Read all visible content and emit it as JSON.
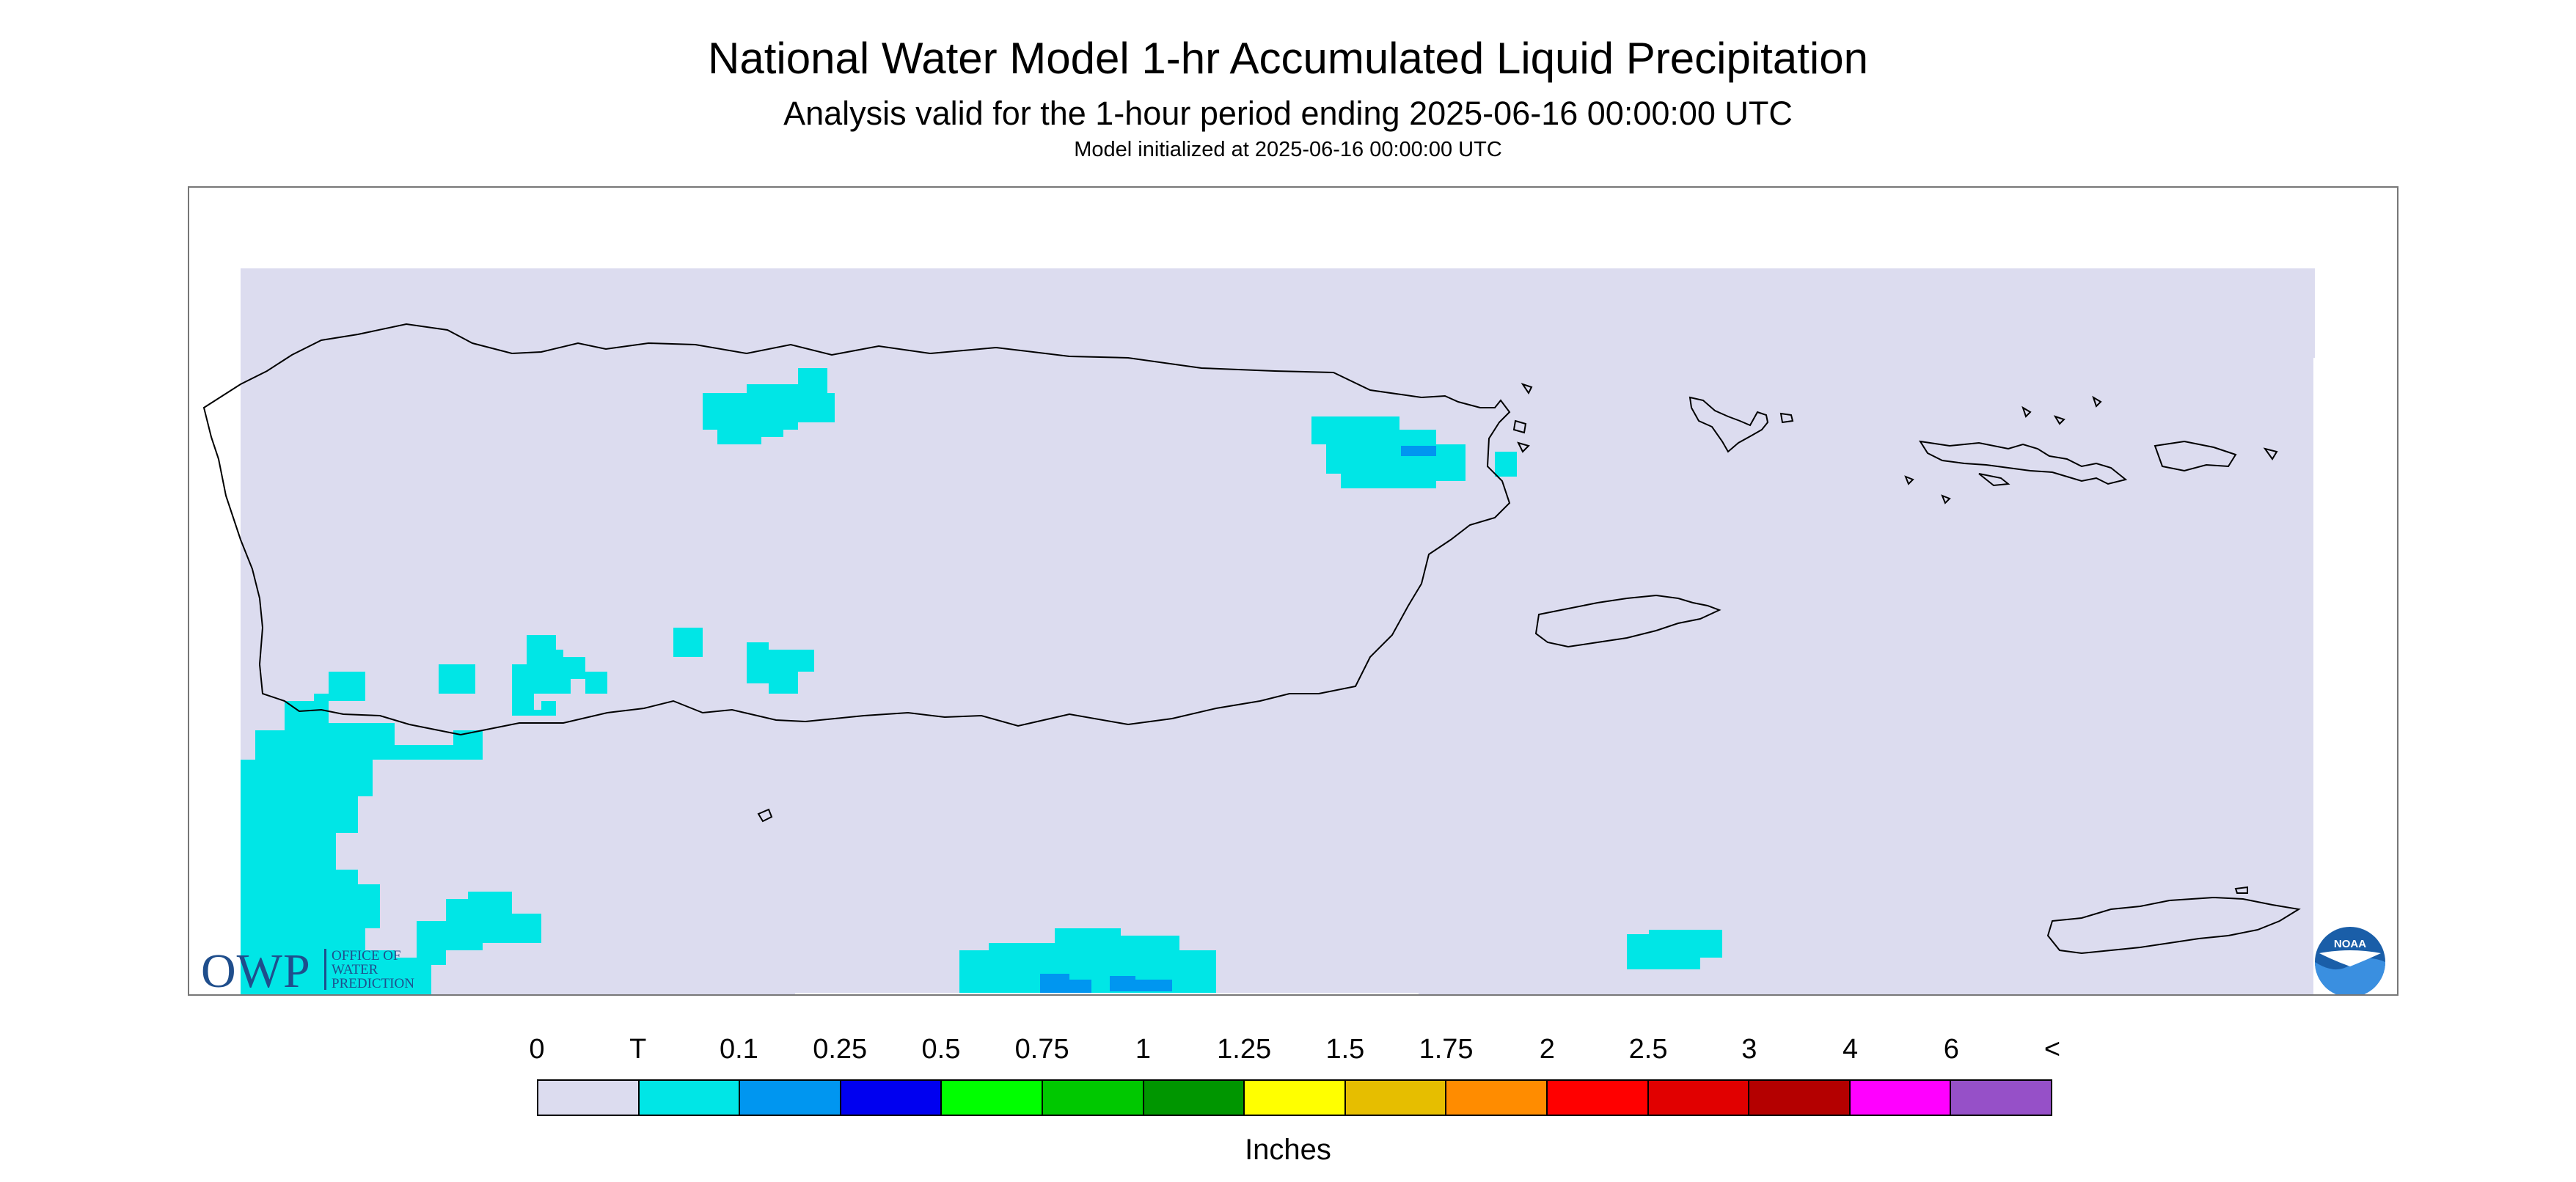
{
  "title": "National Water Model 1-hr Accumulated Liquid Precipitation",
  "subtitle": "Analysis valid for the 1-hour period ending 2025-06-16 00:00:00 UTC",
  "init_line": "Model initialized at 2025-06-16 00:00:00 UTC",
  "colors": {
    "background_fill": "#dcdcef",
    "trace": "#00e6e6",
    "light_blue": "#0096f0",
    "coastline": "#000000"
  },
  "legend": {
    "units": "Inches",
    "labels": [
      "0",
      "T",
      "0.1",
      "0.25",
      "0.5",
      "0.75",
      "1",
      "1.25",
      "1.5",
      "1.75",
      "2",
      "2.5",
      "3",
      "4",
      "6",
      "<"
    ],
    "colors": [
      "#dcdcef",
      "#00e6e6",
      "#0096f0",
      "#0000f0",
      "#00ff00",
      "#00c800",
      "#009600",
      "#ffff00",
      "#e6be00",
      "#ff8c00",
      "#ff0000",
      "#e10000",
      "#b40000",
      "#ff00ff",
      "#9650c8"
    ]
  },
  "logos": {
    "owp_letters": "OWP",
    "owp_text_lines": [
      "OFFICE OF",
      "WATER",
      "PREDICTION"
    ],
    "noaa_text": "NOAA"
  }
}
